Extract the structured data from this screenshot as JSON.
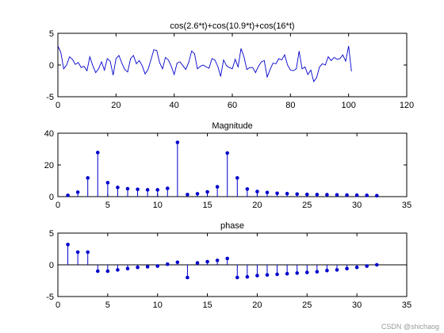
{
  "watermark": "CSDN @shichaog",
  "colors": {
    "series": "#0000cc",
    "axis": "#000000",
    "baseline": "#000000",
    "background": "#ffffff"
  },
  "chart_data": [
    {
      "type": "line",
      "title": "cos(2.6*t)+cos(10.9*t)+cos(16*t)",
      "xlabel": "",
      "ylabel": "",
      "xlim": [
        0,
        120
      ],
      "ylim": [
        -5,
        5
      ],
      "xticks": [
        0,
        20,
        40,
        60,
        80,
        100,
        120
      ],
      "yticks": [
        -5,
        0,
        5
      ],
      "grid": false,
      "x": [
        0,
        1,
        2,
        3,
        4,
        5,
        6,
        7,
        8,
        9,
        10,
        11,
        12,
        13,
        14,
        15,
        16,
        17,
        18,
        19,
        20,
        21,
        22,
        23,
        24,
        25,
        26,
        27,
        28,
        29,
        30,
        31,
        32,
        33,
        34,
        35,
        36,
        37,
        38,
        39,
        40,
        41,
        42,
        43,
        44,
        45,
        46,
        47,
        48,
        49,
        50,
        51,
        52,
        53,
        54,
        55,
        56,
        57,
        58,
        59,
        60,
        61,
        62,
        63,
        64,
        65,
        66,
        67,
        68,
        69,
        70,
        71,
        72,
        73,
        74,
        75,
        76,
        77,
        78,
        79,
        80,
        81,
        82,
        83,
        84,
        85,
        86,
        87,
        88,
        89,
        90,
        91,
        92,
        93,
        94,
        95,
        96,
        97,
        98,
        99,
        100,
        101
      ],
      "y": [
        3.0,
        2.0,
        -0.6,
        0.0,
        1.3,
        0.9,
        0.1,
        0.4,
        -0.4,
        -0.2,
        -0.9,
        1.3,
        -0.1,
        -1.2,
        -0.6,
        0.5,
        -0.8,
        1.0,
        0.6,
        -1.6,
        1.0,
        1.5,
        0.3,
        -0.7,
        -1.1,
        1.0,
        1.5,
        0.2,
        0.7,
        -0.1,
        -1.4,
        -0.7,
        0.8,
        2.4,
        2.3,
        0.4,
        -0.6,
        1.2,
        0.8,
        -0.2,
        -1.5,
        0.3,
        0.5,
        -0.1,
        -0.7,
        0.4,
        2.2,
        1.8,
        -0.6,
        -0.2,
        0.0,
        -0.3,
        -0.5,
        1.0,
        0.8,
        -0.2,
        -1.8,
        0.8,
        -0.1,
        -0.4,
        -0.6,
        0.9,
        -0.3,
        2.6,
        1.3,
        -0.7,
        -0.4,
        -0.4,
        -1.2,
        -0.2,
        0.5,
        0.7,
        -1.9,
        -0.7,
        0.3,
        0.2,
        1.0,
        0.8,
        1.6,
        0.0,
        -0.8,
        -0.9,
        -0.6,
        2.2,
        -0.6,
        -0.3,
        -1.5,
        -0.8,
        -2.6,
        -2.0,
        -0.3,
        0.2,
        0.0,
        1.3,
        0.7,
        1.2,
        0.9,
        1.0,
        1.6,
        0.6,
        3.0,
        -1.0
      ],
      "line_color": "#0000cc"
    },
    {
      "type": "stem",
      "title": "Magnitude",
      "xlabel": "",
      "ylabel": "",
      "xlim": [
        0,
        35
      ],
      "ylim": [
        0,
        40
      ],
      "xticks": [
        0,
        5,
        10,
        15,
        20,
        25,
        30,
        35
      ],
      "yticks": [
        0,
        20,
        40
      ],
      "grid": false,
      "x": [
        1,
        2,
        3,
        4,
        5,
        6,
        7,
        8,
        9,
        10,
        11,
        12,
        13,
        14,
        15,
        16,
        17,
        18,
        19,
        20,
        21,
        22,
        23,
        24,
        25,
        26,
        27,
        28,
        29,
        30,
        31,
        32
      ],
      "y": [
        0.8,
        2.8,
        11.8,
        27.8,
        8.8,
        5.8,
        5.0,
        4.6,
        4.3,
        4.3,
        5.2,
        34.2,
        1.3,
        1.8,
        3.0,
        6.2,
        27.5,
        11.8,
        4.8,
        3.2,
        2.6,
        2.1,
        1.9,
        1.6,
        1.4,
        1.3,
        1.2,
        1.1,
        1.0,
        0.9,
        0.8,
        0.6
      ],
      "marker_color": "#0000cc"
    },
    {
      "type": "stem",
      "title": "phase",
      "xlabel": "",
      "ylabel": "",
      "xlim": [
        0,
        35
      ],
      "ylim": [
        -5,
        5
      ],
      "xticks": [
        0,
        5,
        10,
        15,
        20,
        25,
        30,
        35
      ],
      "yticks": [
        -5,
        0,
        5
      ],
      "grid": false,
      "baseline": true,
      "x": [
        1,
        2,
        3,
        4,
        5,
        6,
        7,
        8,
        9,
        10,
        11,
        12,
        13,
        14,
        15,
        16,
        17,
        18,
        19,
        20,
        21,
        22,
        23,
        24,
        25,
        26,
        27,
        28,
        29,
        30,
        31,
        32
      ],
      "y": [
        3.2,
        2.0,
        2.0,
        -1.0,
        -1.0,
        -0.8,
        -0.6,
        -0.4,
        -0.3,
        -0.2,
        0.1,
        0.4,
        -2.0,
        0.3,
        0.5,
        0.7,
        1.0,
        -2.0,
        -1.9,
        -1.7,
        -1.6,
        -1.5,
        -1.4,
        -1.3,
        -1.2,
        -1.1,
        -0.9,
        -0.8,
        -0.6,
        -0.4,
        -0.2,
        0.0
      ],
      "marker_color": "#0000cc"
    }
  ]
}
